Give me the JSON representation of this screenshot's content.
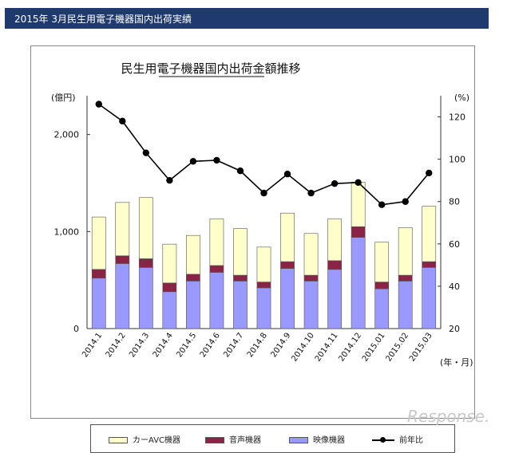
{
  "header": {
    "title": "2015年 3月民生用電子機器国内出荷実績"
  },
  "watermark": "Response.",
  "colors": {
    "header_bg": "#1f3a6e",
    "car_avc": "#ffffcc",
    "audio": "#8b2346",
    "video": "#9999ff",
    "line": "#000000"
  },
  "chart_data": {
    "type": "bar",
    "title": "民生用電子機器国内出荷金額推移",
    "y_left_unit": "(億円)",
    "y_right_unit": "(%)",
    "x_unit": "(年・月)",
    "categories": [
      "2014.1",
      "2014.2",
      "2014.3",
      "2014.4",
      "2014.5",
      "2014.6",
      "2014.7",
      "2014.8",
      "2014.9",
      "2014.10",
      "2014.11",
      "2014.12",
      "2015.01",
      "2015.02",
      "2015.03"
    ],
    "y_left_ticks": [
      "0",
      "1,000",
      "2,000"
    ],
    "y_left_tick_values": [
      0,
      1000,
      2000
    ],
    "y_right_ticks": [
      "20",
      "40",
      "60",
      "80",
      "100",
      "120"
    ],
    "y_right_tick_values": [
      20,
      40,
      60,
      80,
      100,
      120
    ],
    "ylim_left": [
      0,
      2400
    ],
    "ylim_right": [
      20,
      130
    ],
    "stacked": true,
    "series": [
      {
        "name": "映像機器",
        "axis": "left",
        "values": [
          520,
          670,
          630,
          380,
          490,
          580,
          490,
          420,
          620,
          490,
          610,
          940,
          410,
          490,
          630
        ]
      },
      {
        "name": "音声機器",
        "axis": "left",
        "values": [
          90,
          80,
          90,
          90,
          70,
          70,
          60,
          60,
          70,
          60,
          90,
          110,
          70,
          60,
          60
        ]
      },
      {
        "name": "カーAVC機器",
        "axis": "left",
        "values": [
          540,
          550,
          630,
          400,
          400,
          480,
          480,
          360,
          500,
          430,
          430,
          460,
          410,
          490,
          570
        ]
      },
      {
        "name": "前年比",
        "axis": "right",
        "type": "line",
        "values": [
          126,
          118,
          103,
          90,
          99,
          99.5,
          94.5,
          84,
          93,
          84,
          88.5,
          89,
          78.5,
          80,
          93.5
        ]
      }
    ],
    "legend_position": "bottom",
    "grid": false
  }
}
